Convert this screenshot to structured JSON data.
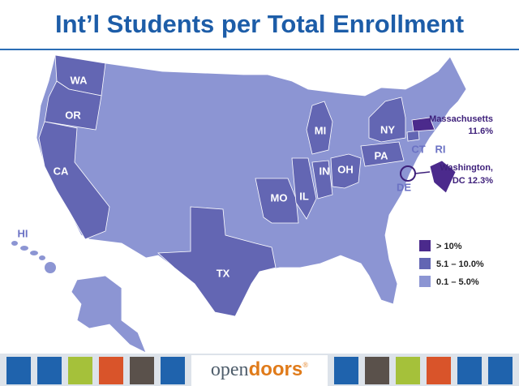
{
  "title": "Int’l Students per Total Enrollment",
  "states": [
    {
      "label": "WA",
      "tier": 1
    },
    {
      "label": "OR",
      "tier": 1
    },
    {
      "label": "CA",
      "tier": 1
    },
    {
      "label": "TX",
      "tier": 1
    },
    {
      "label": "MO",
      "tier": 1
    },
    {
      "label": "IL",
      "tier": 1
    },
    {
      "label": "IN",
      "tier": 1
    },
    {
      "label": "OH",
      "tier": 1
    },
    {
      "label": "MI",
      "tier": 1
    },
    {
      "label": "NY",
      "tier": 1
    },
    {
      "label": "PA",
      "tier": 1
    },
    {
      "label": "CT",
      "tier": 1
    },
    {
      "label": "RI",
      "tier": 2
    },
    {
      "label": "DE",
      "tier": 2
    },
    {
      "label": "HI",
      "tier": 2
    }
  ],
  "callouts": [
    {
      "lines": [
        "Massachusetts",
        "11.6%"
      ],
      "tier": 0
    },
    {
      "lines": [
        "Washington,",
        "DC  12.3%"
      ],
      "tier": 0
    }
  ],
  "legend": [
    {
      "label": "> 10%",
      "color": "#4b2a8c"
    },
    {
      "label": "5.1 – 10.0%",
      "color": "#6366b3"
    },
    {
      "label": "0.1 – 5.0%",
      "color": "#8c95d3"
    }
  ],
  "footer": {
    "logo": [
      "open",
      "doors",
      "®"
    ]
  }
}
